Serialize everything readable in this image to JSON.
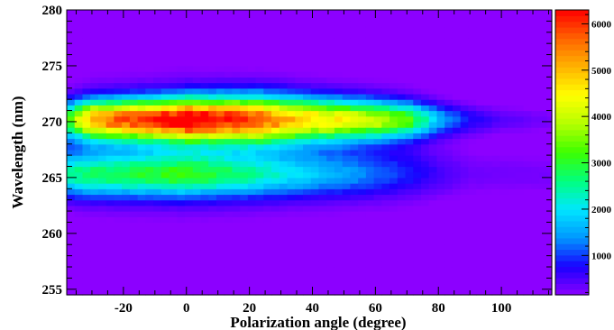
{
  "chart_data": {
    "type": "heatmap",
    "title": "",
    "xlabel": "Polarization angle (degree)",
    "ylabel": "Wavelength (nm)",
    "xlim": [
      -38,
      116
    ],
    "ylim": [
      254.5,
      280
    ],
    "zlim": [
      150,
      6300
    ],
    "x_ticks": [
      -20,
      0,
      20,
      40,
      60,
      80,
      100
    ],
    "y_ticks": [
      255,
      260,
      265,
      270,
      275,
      280
    ],
    "z_ticks": [
      1000,
      2000,
      3000,
      4000,
      5000,
      6000
    ],
    "x_tick_labels": [
      "-20",
      "0",
      "20",
      "40",
      "60",
      "80",
      "100"
    ],
    "y_tick_labels": [
      "255",
      "260",
      "265",
      "270",
      "275",
      "280"
    ],
    "z_tick_labels": [
      "1000",
      "2000",
      "3000",
      "4000",
      "5000",
      "6000"
    ],
    "palette": [
      "#8c00ff",
      "#1a00ff",
      "#0096ff",
      "#00e6ff",
      "#00ff7f",
      "#3cff00",
      "#b4ff00",
      "#ffff00",
      "#ffb400",
      "#ff6400",
      "#ff0000"
    ],
    "x_bin_width": 2.5,
    "y_bin_width": 0.5,
    "background_level": 150,
    "band": {
      "center_wavelength": 270.2,
      "peak_value": 6300,
      "peak_angle": 0,
      "half_width_nm": [
        1.6,
        1.8,
        2.0,
        1.7,
        1.3,
        1.0
      ],
      "amplitude_at_angle": [
        {
          "angle": -38,
          "value": 2600
        },
        {
          "angle": -30,
          "value": 4800
        },
        {
          "angle": -20,
          "value": 5300
        },
        {
          "angle": -10,
          "value": 5600
        },
        {
          "angle": 0,
          "value": 6300
        },
        {
          "angle": 10,
          "value": 5800
        },
        {
          "angle": 20,
          "value": 5400
        },
        {
          "angle": 30,
          "value": 4800
        },
        {
          "angle": 40,
          "value": 4300
        },
        {
          "angle": 50,
          "value": 4000
        },
        {
          "angle": 60,
          "value": 3700
        },
        {
          "angle": 70,
          "value": 3100
        },
        {
          "angle": 80,
          "value": 1500
        },
        {
          "angle": 90,
          "value": 700
        },
        {
          "angle": 100,
          "value": 400
        },
        {
          "angle": 116,
          "value": 250
        }
      ],
      "lower_shoulder": {
        "center_wavelength": 265.3,
        "amplitude_at_angle": [
          {
            "angle": -38,
            "value": 2200
          },
          {
            "angle": 0,
            "value": 2600
          },
          {
            "angle": 40,
            "value": 1400
          },
          {
            "angle": 70,
            "value": 600
          },
          {
            "angle": 90,
            "value": 250
          }
        ]
      }
    }
  }
}
